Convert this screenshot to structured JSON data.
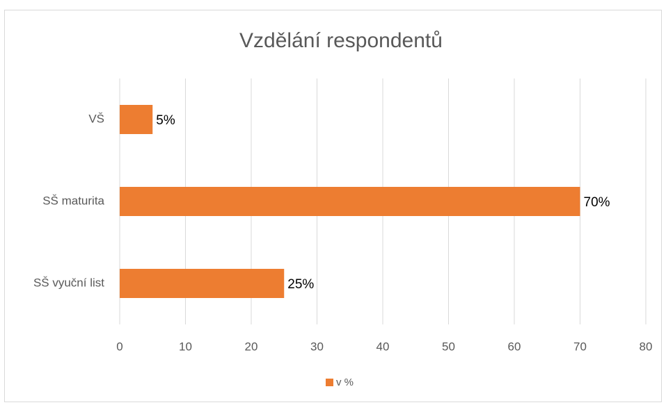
{
  "chart_data": {
    "type": "bar",
    "orientation": "horizontal",
    "title": "Vzdělání respondentů",
    "categories": [
      "VŠ",
      "SŠ maturita",
      "SŠ vyuční list"
    ],
    "series": [
      {
        "name": "v %",
        "color": "#ed7d31",
        "values": [
          5,
          70,
          25
        ],
        "value_labels": [
          "5%",
          "70%",
          "25%"
        ]
      }
    ],
    "xlim": [
      0,
      80
    ],
    "xticks": [
      0,
      10,
      20,
      30,
      40,
      50,
      60,
      70,
      80
    ],
    "grid": true,
    "legend": "bottom"
  }
}
